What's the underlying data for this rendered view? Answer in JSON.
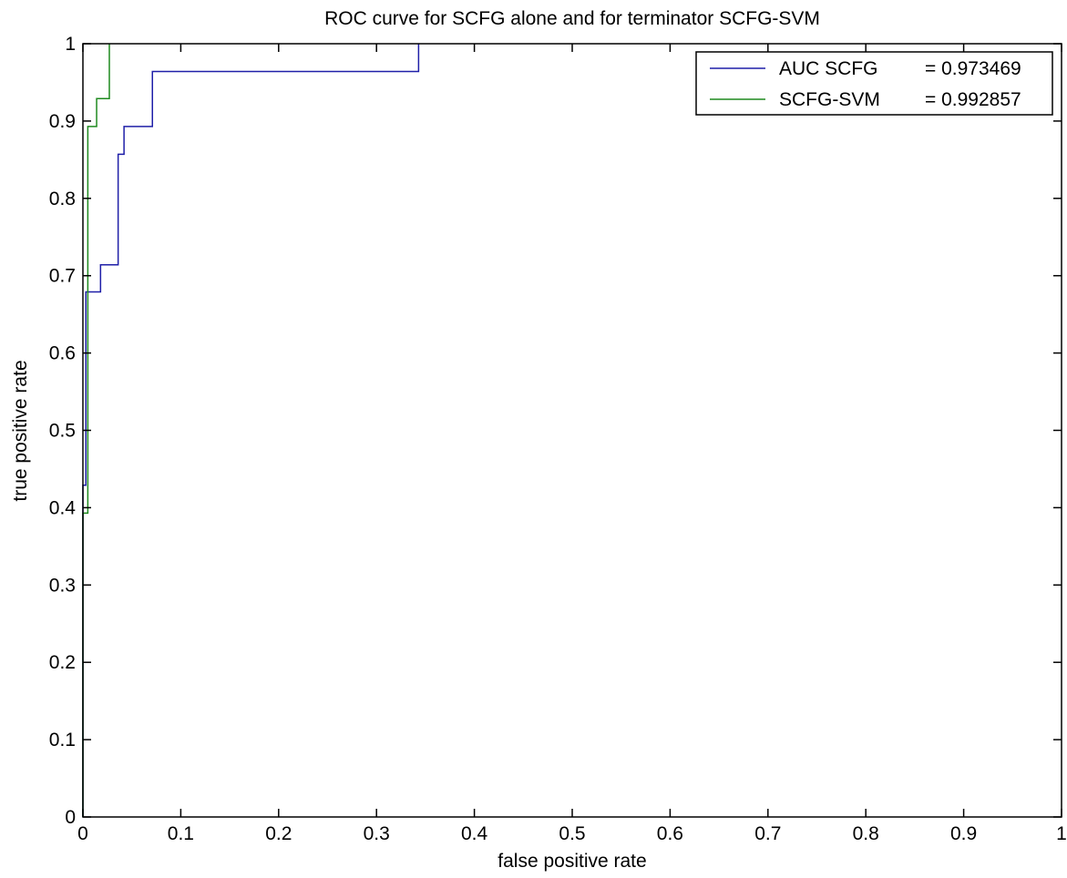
{
  "chart_data": {
    "type": "line",
    "title": "ROC curve for SCFG alone and for terminator SCFG-SVM",
    "xlabel": "false positive rate",
    "ylabel": "true positive rate",
    "xlim": [
      0,
      1
    ],
    "ylim": [
      0,
      1
    ],
    "xticks": [
      0,
      0.1,
      0.2,
      0.3,
      0.4,
      0.5,
      0.6,
      0.7,
      0.8,
      0.9,
      1
    ],
    "yticks": [
      0,
      0.1,
      0.2,
      0.3,
      0.4,
      0.5,
      0.6,
      0.7,
      0.8,
      0.9,
      1
    ],
    "xtick_labels": [
      "0",
      "0.1",
      "0.2",
      "0.3",
      "0.4",
      "0.5",
      "0.6",
      "0.7",
      "0.8",
      "0.9",
      "1"
    ],
    "ytick_labels": [
      "0",
      "0.1",
      "0.2",
      "0.3",
      "0.4",
      "0.5",
      "0.6",
      "0.7",
      "0.8",
      "0.9",
      "1"
    ],
    "grid": false,
    "legend_position": "top-right",
    "series": [
      {
        "name": "AUC SCFG",
        "value_label": "= 0.973469",
        "color": "#1f1fa8",
        "x": [
          0,
          0,
          0.003,
          0.003,
          0.018,
          0.018,
          0.036,
          0.036,
          0.042,
          0.042,
          0.071,
          0.071,
          0.343,
          0.343
        ],
        "y": [
          0,
          0.429,
          0.429,
          0.679,
          0.679,
          0.714,
          0.714,
          0.857,
          0.857,
          0.893,
          0.893,
          0.964,
          0.964,
          1.0
        ]
      },
      {
        "name": "SCFG-SVM",
        "value_label": "= 0.992857",
        "color": "#1f8a1f",
        "x": [
          0,
          0,
          0.005,
          0.005,
          0.009,
          0.009,
          0.014,
          0.014,
          0.027,
          0.027
        ],
        "y": [
          0,
          0.393,
          0.393,
          0.893,
          0.893,
          0.893,
          0.893,
          0.929,
          0.929,
          1.0
        ]
      }
    ]
  }
}
